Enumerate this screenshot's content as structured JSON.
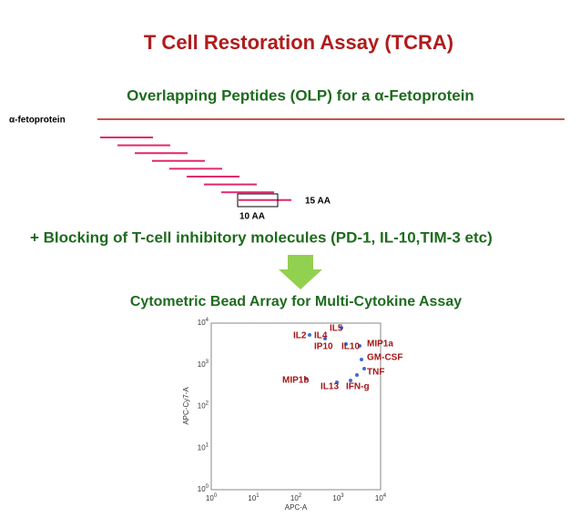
{
  "title": "T Cell Restoration Assay (TCRA)",
  "subtitle": "Overlapping Peptides (OLP) for a α-Fetoprotein",
  "protein_label": "α-fetoprotein",
  "peptide": {
    "length_label": "15 AA",
    "overlap_label": "10 AA"
  },
  "blocking": "+ Blocking of T-cell inhibitory molecules (PD-1, IL-10,TIM-3 etc)",
  "assay_title": "Cytometric Bead Array for Multi-Cytokine Assay",
  "plot": {
    "x_label": "APC-A",
    "y_label": "APC-Cy7-A",
    "ticks": [
      {
        "base": "10",
        "exp": "0"
      },
      {
        "base": "10",
        "exp": "1"
      },
      {
        "base": "10",
        "exp": "2"
      },
      {
        "base": "10",
        "exp": "3"
      },
      {
        "base": "10",
        "exp": "4"
      }
    ],
    "cytokines": [
      "IL2",
      "IL4",
      "IL5",
      "IP10",
      "IL10",
      "MIP1a",
      "GM-CSF",
      "TNF",
      "MIP1b",
      "IL13",
      "IFN-g"
    ]
  }
}
